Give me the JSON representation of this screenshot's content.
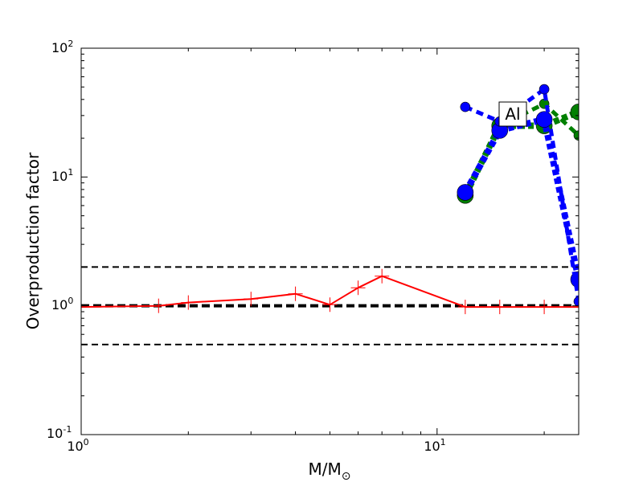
{
  "chart_data": {
    "type": "line",
    "x_scale": "log",
    "y_scale": "log",
    "xlim": [
      1,
      25
    ],
    "ylim": [
      0.1,
      100
    ],
    "xlabel_main": "M/M",
    "xlabel_sub": "⊙",
    "ylabel": "Overproduction factor",
    "x_ticks": [
      {
        "value": 1,
        "base": "10",
        "exp": "0"
      },
      {
        "value": 10,
        "base": "10",
        "exp": "1"
      }
    ],
    "y_ticks": [
      {
        "value": 0.1,
        "base": "10",
        "exp": "-1"
      },
      {
        "value": 1,
        "base": "10",
        "exp": "0"
      },
      {
        "value": 10,
        "base": "10",
        "exp": "1"
      },
      {
        "value": 100,
        "base": "10",
        "exp": "2"
      }
    ],
    "annotation": "Al",
    "reference_lines": [
      {
        "y": 2.0,
        "style": "dashed-thin"
      },
      {
        "y": 1.0,
        "style": "dashed-thick"
      },
      {
        "y": 0.5,
        "style": "dashed-thin"
      }
    ],
    "series": [
      {
        "color": "#ff0000",
        "style": "solid",
        "marker": "plus",
        "x": [
          1.0,
          1.65,
          2.0,
          3.0,
          4.0,
          5.0,
          6.0,
          7.0,
          12.0,
          15.0,
          20.0,
          25.0
        ],
        "y": [
          0.98,
          1.0,
          1.06,
          1.13,
          1.24,
          1.02,
          1.38,
          1.7,
          0.98,
          0.98,
          0.98,
          0.98
        ]
      },
      {
        "color": "#0000ff",
        "style": "dashed-heavy",
        "marker": "circle-large",
        "x": [
          12.0,
          15.0,
          20.0,
          25.0
        ],
        "y": [
          7.6,
          23.0,
          28.0,
          1.6
        ]
      },
      {
        "color": "#0000ff",
        "style": "dashed",
        "marker": "circle-small",
        "x": [
          12.0,
          15.0,
          20.0,
          25.0
        ],
        "y": [
          35.0,
          27.0,
          48.0,
          1.08
        ]
      },
      {
        "color": "#008000",
        "style": "dashed-heavy",
        "marker": "circle-large",
        "x": [
          12.0,
          15.0,
          20.0,
          25.0
        ],
        "y": [
          7.2,
          25.0,
          25.0,
          32.0
        ]
      },
      {
        "color": "#008000",
        "style": "dashed",
        "marker": "circle-small",
        "x": [
          15.0,
          20.0,
          25.0
        ],
        "y": [
          25.0,
          37.0,
          21.0
        ]
      }
    ]
  }
}
